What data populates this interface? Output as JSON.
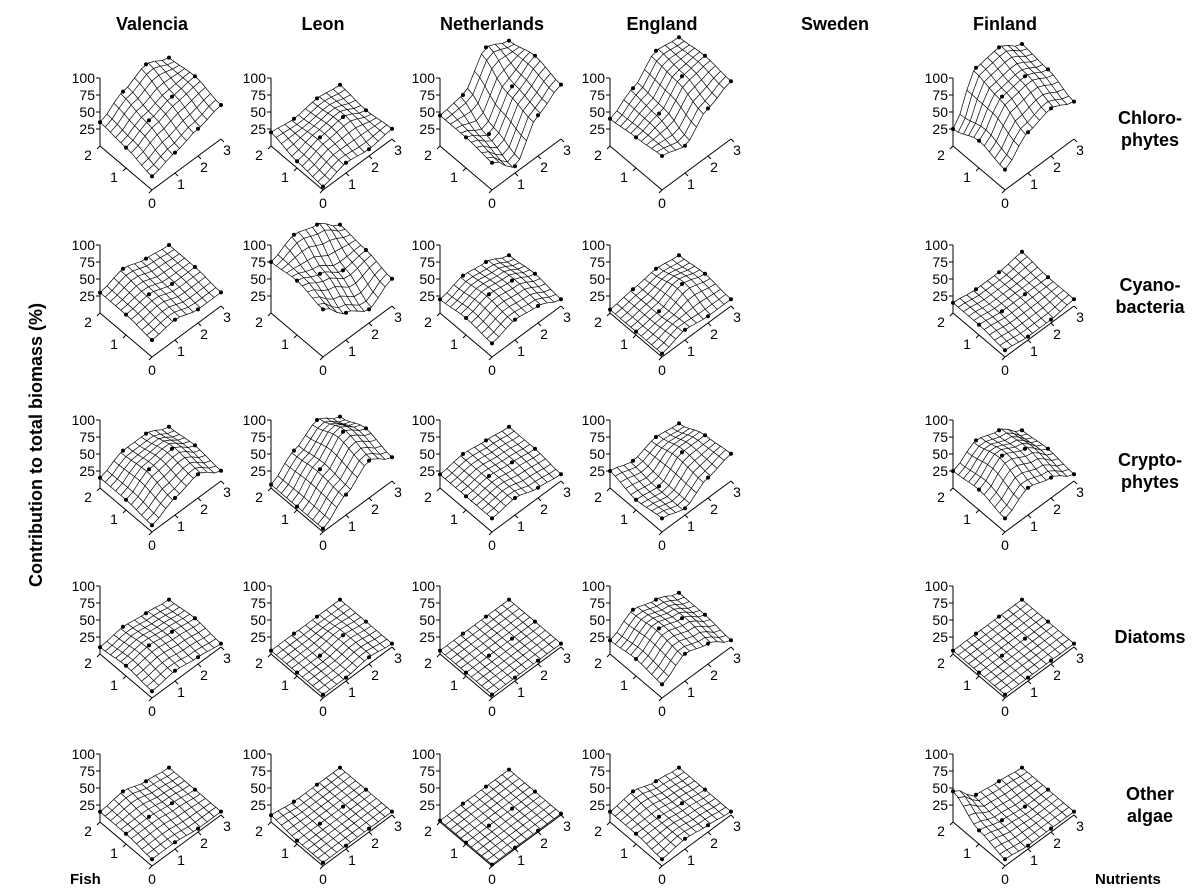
{
  "chart_data": {
    "type": "surface3d",
    "y_label": "Contribution to total biomass (%)",
    "fish_label": "Fish",
    "nutrient_label": "Nutrients",
    "columns": [
      "Valencia",
      "Leon",
      "Netherlands",
      "England",
      "Sweden",
      "Finland"
    ],
    "rows": [
      [
        "Chloro-",
        "phytes"
      ],
      [
        "Cyano-",
        "bacteria"
      ],
      [
        "Crypto-",
        "phytes"
      ],
      [
        "Diatoms"
      ],
      [
        "Other",
        "algae"
      ]
    ],
    "zlim": [
      0,
      100
    ],
    "zticks": [
      25,
      50,
      75,
      100
    ],
    "fish_ticks": [
      0,
      1,
      2
    ],
    "nutrient_ticks": [
      1,
      2,
      3
    ],
    "color": "#000000",
    "panels": [
      [
        [
          [
            20,
            30,
            40,
            50
          ],
          [
            30,
            45,
            55,
            60
          ],
          [
            35,
            55,
            70,
            55
          ]
        ],
        [
          [
            5,
            15,
            10,
            15
          ],
          [
            10,
            20,
            25,
            10
          ],
          [
            20,
            15,
            20,
            15
          ]
        ],
        [
          [
            40,
            10,
            60,
            80
          ],
          [
            45,
            25,
            70,
            90
          ],
          [
            45,
            50,
            95,
            80
          ]
        ],
        [
          [
            50,
            40,
            70,
            85
          ],
          [
            45,
            55,
            85,
            90
          ],
          [
            40,
            60,
            90,
            85
          ]
        ],
        null,
        [
          [
            30,
            60,
            70,
            55
          ],
          [
            40,
            80,
            85,
            70
          ],
          [
            25,
            90,
            95,
            75
          ]
        ]
      ],
      [
        [
          [
            25,
            30,
            20,
            20
          ],
          [
            30,
            35,
            25,
            25
          ],
          [
            30,
            40,
            30,
            25
          ]
        ],
        [
          [
            70,
            40,
            20,
            40
          ],
          [
            80,
            65,
            45,
            50
          ],
          [
            75,
            90,
            80,
            55
          ]
        ],
        [
          [
            20,
            30,
            25,
            10
          ],
          [
            25,
            35,
            30,
            15
          ],
          [
            20,
            30,
            25,
            10
          ]
        ],
        [
          [
            5,
            15,
            10,
            10
          ],
          [
            5,
            10,
            25,
            15
          ],
          [
            5,
            10,
            15,
            10
          ]
        ],
        null,
        [
          [
            10,
            5,
            5,
            10
          ],
          [
            15,
            10,
            10,
            10
          ],
          [
            15,
            10,
            10,
            15
          ]
        ]
      ],
      [
        [
          [
            10,
            25,
            35,
            15
          ],
          [
            15,
            35,
            40,
            20
          ],
          [
            15,
            30,
            30,
            15
          ]
        ],
        [
          [
            5,
            30,
            55,
            35
          ],
          [
            5,
            35,
            65,
            45
          ],
          [
            5,
            30,
            50,
            30
          ]
        ],
        [
          [
            20,
            25,
            15,
            10
          ],
          [
            20,
            25,
            20,
            15
          ],
          [
            20,
            25,
            20,
            15
          ]
        ],
        [
          [
            20,
            10,
            30,
            40
          ],
          [
            15,
            10,
            35,
            35
          ],
          [
            25,
            15,
            25,
            20
          ]
        ],
        null,
        [
          [
            20,
            40,
            30,
            10
          ],
          [
            30,
            55,
            40,
            15
          ],
          [
            25,
            45,
            35,
            10
          ]
        ]
      ],
      [
        [
          [
            10,
            15,
            10,
            5
          ],
          [
            15,
            20,
            15,
            10
          ],
          [
            10,
            15,
            10,
            5
          ]
        ],
        [
          [
            5,
            5,
            10,
            5
          ],
          [
            5,
            5,
            10,
            5
          ],
          [
            5,
            5,
            5,
            5
          ]
        ],
        [
          [
            5,
            5,
            5,
            5
          ],
          [
            5,
            5,
            5,
            5
          ],
          [
            5,
            5,
            5,
            5
          ]
        ],
        [
          [
            20,
            40,
            30,
            10
          ],
          [
            25,
            45,
            35,
            15
          ],
          [
            20,
            40,
            30,
            15
          ]
        ],
        null,
        [
          [
            5,
            5,
            5,
            5
          ],
          [
            5,
            5,
            5,
            5
          ],
          [
            5,
            5,
            5,
            5
          ]
        ]
      ],
      [
        [
          [
            10,
            10,
            5,
            5
          ],
          [
            15,
            15,
            10,
            5
          ],
          [
            15,
            20,
            10,
            5
          ]
        ],
        [
          [
            5,
            5,
            5,
            5
          ],
          [
            5,
            5,
            5,
            5
          ],
          [
            10,
            5,
            5,
            5
          ]
        ],
        [
          [
            2,
            2,
            2,
            2
          ],
          [
            2,
            2,
            2,
            2
          ],
          [
            2,
            2,
            2,
            2
          ]
        ],
        [
          [
            10,
            15,
            10,
            5
          ],
          [
            15,
            15,
            10,
            5
          ],
          [
            15,
            20,
            10,
            5
          ]
        ],
        null,
        [
          [
            10,
            5,
            5,
            5
          ],
          [
            20,
            10,
            5,
            5
          ],
          [
            45,
            15,
            10,
            5
          ]
        ]
      ]
    ]
  }
}
